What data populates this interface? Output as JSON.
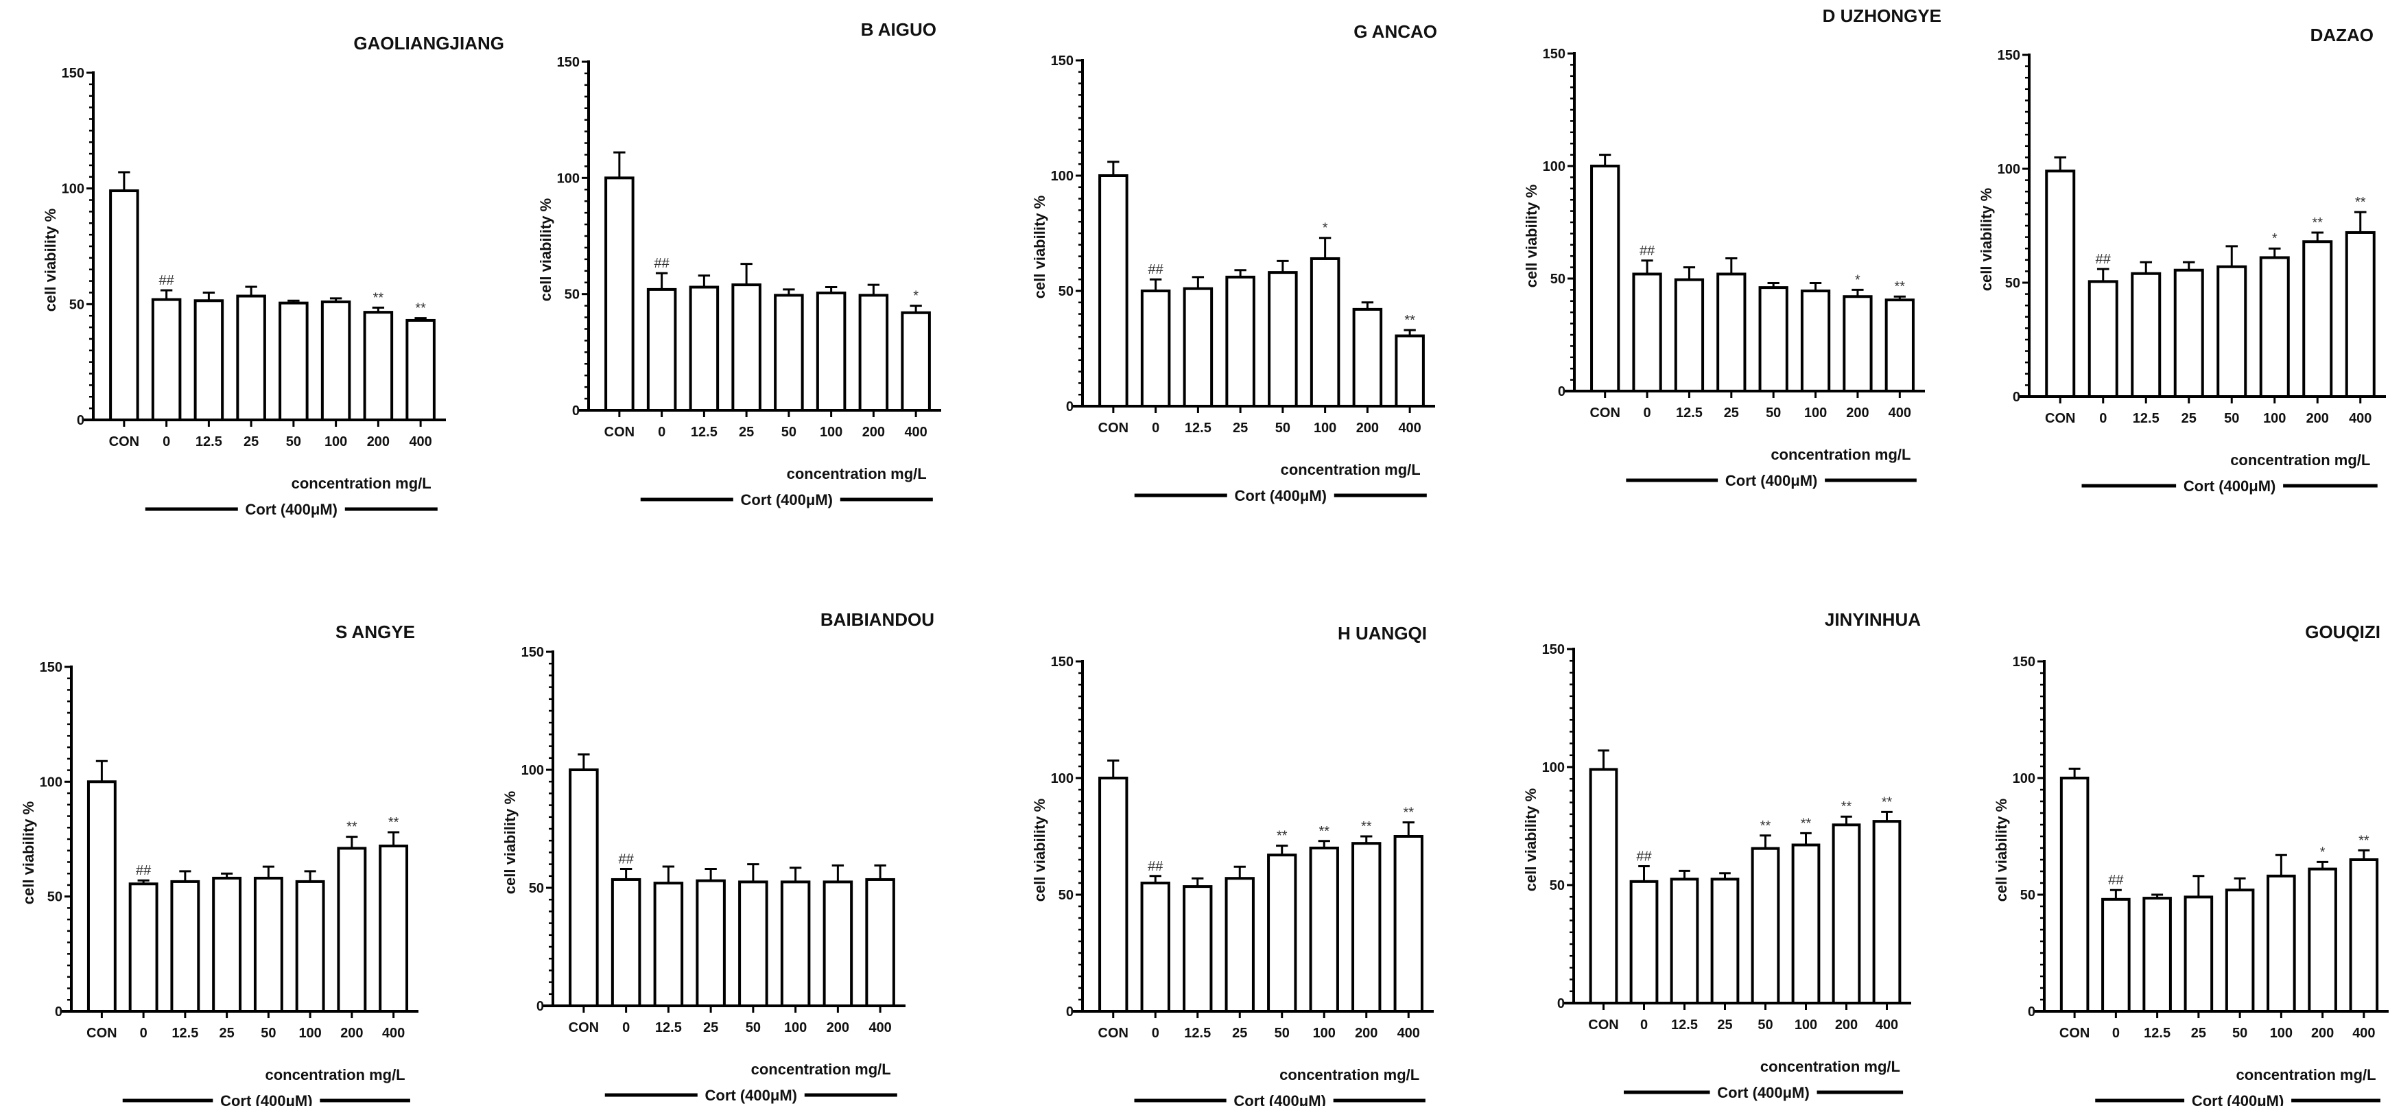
{
  "figure": {
    "ylabel": "cell viability %",
    "xlabel": "concentration mg/L",
    "treatment_label": "Cort (400μM)",
    "bar_fill": "#ffffff",
    "bar_stroke": "#000000"
  },
  "chart_data": [
    {
      "type": "bar",
      "title": "GAOLIANGJIANG",
      "categories": [
        "CON",
        "0",
        "12.5",
        "25",
        "50",
        "100",
        "200",
        "400"
      ],
      "values": [
        99,
        52,
        51.5,
        53.5,
        50.5,
        51,
        46.5,
        43
      ],
      "error_upper": [
        107,
        56,
        55,
        57.5,
        51.5,
        52.5,
        48.5,
        44
      ],
      "annotations": [
        "",
        "##",
        "",
        "",
        "",
        "",
        "**",
        "**"
      ],
      "xlabel": "concentration mg/L",
      "ylabel": "cell viability %",
      "yticks": [
        0,
        50,
        100,
        150
      ],
      "ylim": [
        0,
        150
      ],
      "grid": false
    },
    {
      "type": "bar",
      "title": "B   AIGUO",
      "categories": [
        "CON",
        "0",
        "12.5",
        "25",
        "50",
        "100",
        "200",
        "400"
      ],
      "values": [
        100,
        52,
        53,
        54,
        49.5,
        50.5,
        49.5,
        42
      ],
      "error_upper": [
        111,
        59,
        58,
        63,
        52,
        53,
        54,
        45
      ],
      "annotations": [
        "",
        "##",
        "",
        "",
        "",
        "",
        "",
        "*"
      ],
      "xlabel": "concentration mg/L",
      "ylabel": "cell viability %",
      "yticks": [
        0,
        50,
        100,
        150
      ],
      "ylim": [
        0,
        150
      ],
      "grid": false
    },
    {
      "type": "bar",
      "title": "G   ANCAO",
      "categories": [
        "CON",
        "0",
        "12.5",
        "25",
        "50",
        "100",
        "200",
        "400"
      ],
      "values": [
        100,
        50,
        51,
        56,
        58,
        64,
        42,
        30.5
      ],
      "error_upper": [
        106,
        55,
        56,
        59,
        63,
        73,
        45,
        33
      ],
      "annotations": [
        "",
        "##",
        "",
        "",
        "",
        "*",
        "",
        "**"
      ],
      "xlabel": "concentration mg/L",
      "ylabel": "cell viability %",
      "yticks": [
        0,
        50,
        100,
        150
      ],
      "ylim": [
        0,
        150
      ],
      "grid": false
    },
    {
      "type": "bar",
      "title": "D   UZHONGYE",
      "categories": [
        "CON",
        "0",
        "12.5",
        "25",
        "50",
        "100",
        "200",
        "400"
      ],
      "values": [
        100,
        52,
        49.5,
        52,
        46,
        44.5,
        42,
        40.5
      ],
      "error_upper": [
        105,
        58,
        55,
        59,
        48,
        48,
        45,
        42
      ],
      "annotations": [
        "",
        "##",
        "",
        "",
        "",
        "",
        "*",
        "**"
      ],
      "xlabel": "concentration mg/L",
      "ylabel": "cell viability %",
      "yticks": [
        0,
        50,
        100,
        150
      ],
      "ylim": [
        0,
        150
      ],
      "grid": false
    },
    {
      "type": "bar",
      "title": "DAZAO",
      "categories": [
        "CON",
        "0",
        "12.5",
        "25",
        "50",
        "100",
        "200",
        "400"
      ],
      "values": [
        99,
        50.5,
        54,
        55.5,
        57,
        61,
        68,
        72
      ],
      "error_upper": [
        105,
        56,
        59,
        59,
        66,
        65,
        72,
        81
      ],
      "annotations": [
        "",
        "##",
        "",
        "",
        "",
        "*",
        "**",
        "**"
      ],
      "xlabel": "concentration mg/L",
      "ylabel": "cell viability %",
      "yticks": [
        0,
        50,
        100,
        150
      ],
      "ylim": [
        0,
        150
      ],
      "grid": false
    },
    {
      "type": "bar",
      "title": "S   ANGYE",
      "categories": [
        "CON",
        "0",
        "12.5",
        "25",
        "50",
        "100",
        "200",
        "400"
      ],
      "values": [
        100,
        55.5,
        56.5,
        58,
        58,
        56.5,
        71,
        72
      ],
      "error_upper": [
        109,
        57,
        61,
        60,
        63,
        61,
        76,
        78
      ],
      "annotations": [
        "",
        "##",
        "",
        "",
        "",
        "",
        "**",
        "**"
      ],
      "xlabel": "concentration mg/L",
      "ylabel": "cell viability %",
      "yticks": [
        0,
        50,
        100,
        150
      ],
      "ylim": [
        0,
        150
      ],
      "grid": false
    },
    {
      "type": "bar",
      "title": "BAIBIANDOU",
      "categories": [
        "CON",
        "0",
        "12.5",
        "25",
        "50",
        "100",
        "200",
        "400"
      ],
      "values": [
        100,
        53.5,
        52,
        53,
        52.5,
        52.5,
        52.5,
        53.5
      ],
      "error_upper": [
        106.5,
        58,
        59,
        58,
        60,
        58.5,
        59.5,
        59.5
      ],
      "annotations": [
        "",
        "##",
        "",
        "",
        "",
        "",
        "",
        ""
      ],
      "xlabel": "concentration mg/L",
      "ylabel": "cell viability %",
      "yticks": [
        0,
        50,
        100,
        150
      ],
      "ylim": [
        0,
        150
      ],
      "grid": false
    },
    {
      "type": "bar",
      "title": "H   UANGQI",
      "categories": [
        "CON",
        "0",
        "12.5",
        "25",
        "50",
        "100",
        "200",
        "400"
      ],
      "values": [
        100,
        55,
        53.5,
        57,
        67,
        70,
        72,
        75
      ],
      "error_upper": [
        107.5,
        58,
        57,
        62,
        71,
        73,
        75,
        81
      ],
      "annotations": [
        "",
        "##",
        "",
        "",
        "**",
        "**",
        "**",
        "**"
      ],
      "xlabel": "concentration mg/L",
      "ylabel": "cell viability %",
      "yticks": [
        0,
        50,
        100,
        150
      ],
      "ylim": [
        0,
        150
      ],
      "grid": false
    },
    {
      "type": "bar",
      "title": "JINYINHUA",
      "categories": [
        "CON",
        "0",
        "12.5",
        "25",
        "50",
        "100",
        "200",
        "400"
      ],
      "values": [
        99,
        51.5,
        52.5,
        52.5,
        65.5,
        67,
        75.5,
        77
      ],
      "error_upper": [
        107,
        58,
        56,
        55,
        71,
        72,
        79,
        81
      ],
      "annotations": [
        "",
        "##",
        "",
        "",
        "**",
        "**",
        "**",
        "**"
      ],
      "xlabel": "concentration mg/L",
      "ylabel": "cell viability %",
      "yticks": [
        0,
        50,
        100,
        150
      ],
      "ylim": [
        0,
        150
      ],
      "grid": false
    },
    {
      "type": "bar",
      "title": "GOUQIZI",
      "categories": [
        "CON",
        "0",
        "12.5",
        "25",
        "50",
        "100",
        "200",
        "400"
      ],
      "values": [
        100,
        48,
        48.5,
        49,
        52,
        58,
        61,
        65
      ],
      "error_upper": [
        104,
        52,
        50,
        58,
        57,
        67,
        64,
        69
      ],
      "annotations": [
        "",
        "##",
        "",
        "",
        "",
        "",
        "*",
        "**"
      ],
      "xlabel": "concentration mg/L",
      "ylabel": "cell viability %",
      "yticks": [
        0,
        50,
        100,
        150
      ],
      "ylim": [
        0,
        150
      ],
      "grid": false
    }
  ]
}
